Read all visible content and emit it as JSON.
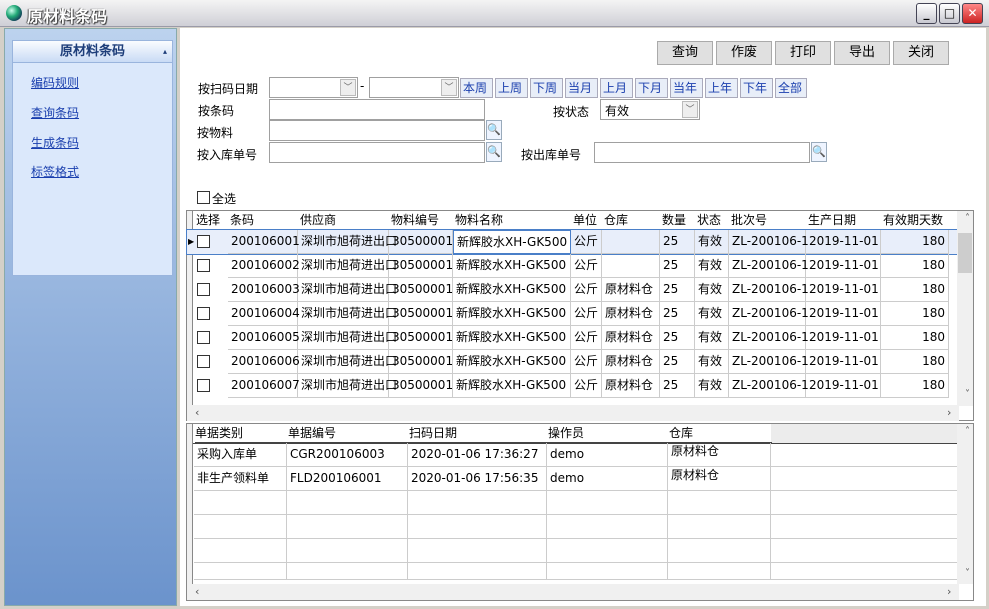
{
  "window": {
    "title": "原材料条码",
    "minimize": "_",
    "maximize": "□",
    "close": "✕"
  },
  "sidebar": {
    "header": "原材料条码",
    "collapse_icon": "▴",
    "items": [
      {
        "label": "编码规则"
      },
      {
        "label": "查询条码"
      },
      {
        "label": "生成条码"
      },
      {
        "label": "标签格式"
      }
    ]
  },
  "toolbar": {
    "buttons": [
      {
        "label": "查询"
      },
      {
        "label": "作废"
      },
      {
        "label": "打印"
      },
      {
        "label": "导出"
      },
      {
        "label": "关闭"
      }
    ]
  },
  "filters": {
    "scan_date_label": "按扫码日期",
    "date_sep": "-",
    "date_from": "",
    "date_to": "",
    "quick_ranges": [
      "本周",
      "上周",
      "下周",
      "当月",
      "上月",
      "下月",
      "当年",
      "上年",
      "下年",
      "全部"
    ],
    "barcode_label": "按条码",
    "barcode_value": "",
    "status_label": "按状态",
    "status_value": "有效",
    "material_label": "按物料",
    "material_value": "",
    "in_order_label": "按入库单号",
    "in_order_value": "",
    "out_order_label": "按出库单号",
    "out_order_value": "",
    "select_all_label": "全选"
  },
  "top_grid": {
    "columns": [
      "选择",
      "条码",
      "供应商",
      "物料编号",
      "物料名称",
      "单位",
      "仓库",
      "数量",
      "状态",
      "批次号",
      "生产日期",
      "有效期天数"
    ],
    "rows": [
      [
        "",
        "200106001",
        "深圳市旭荷进出口",
        "30500001",
        "新辉胶水XH-GK500",
        "公斤",
        "",
        "25",
        "有效",
        "ZL-200106-1",
        "2019-11-01",
        "180"
      ],
      [
        "",
        "200106002",
        "深圳市旭荷进出口",
        "30500001",
        "新辉胶水XH-GK500",
        "公斤",
        "",
        "25",
        "有效",
        "ZL-200106-1",
        "2019-11-01",
        "180"
      ],
      [
        "",
        "200106003",
        "深圳市旭荷进出口",
        "30500001",
        "新辉胶水XH-GK500",
        "公斤",
        "原材料仓",
        "25",
        "有效",
        "ZL-200106-1",
        "2019-11-01",
        "180"
      ],
      [
        "",
        "200106004",
        "深圳市旭荷进出口",
        "30500001",
        "新辉胶水XH-GK500",
        "公斤",
        "原材料仓",
        "25",
        "有效",
        "ZL-200106-1",
        "2019-11-01",
        "180"
      ],
      [
        "",
        "200106005",
        "深圳市旭荷进出口",
        "30500001",
        "新辉胶水XH-GK500",
        "公斤",
        "原材料仓",
        "25",
        "有效",
        "ZL-200106-1",
        "2019-11-01",
        "180"
      ],
      [
        "",
        "200106006",
        "深圳市旭荷进出口",
        "30500001",
        "新辉胶水XH-GK500",
        "公斤",
        "原材料仓",
        "25",
        "有效",
        "ZL-200106-1",
        "2019-11-01",
        "180"
      ],
      [
        "",
        "200106007",
        "深圳市旭荷进出口",
        "30500001",
        "新辉胶水XH-GK500",
        "公斤",
        "原材料仓",
        "25",
        "有效",
        "ZL-200106-1",
        "2019-11-01",
        "180"
      ]
    ]
  },
  "bottom_grid": {
    "columns": [
      "单据类别",
      "单据编号",
      "扫码日期",
      "操作员",
      "仓库"
    ],
    "rows": [
      [
        "采购入库单",
        "CGR200106003",
        "2020-01-06 17:36:27",
        "demo",
        "原材料仓"
      ],
      [
        "非生产领料单",
        "FLD200106001",
        "2020-01-06 17:56:35",
        "demo",
        "原材料仓"
      ]
    ]
  }
}
